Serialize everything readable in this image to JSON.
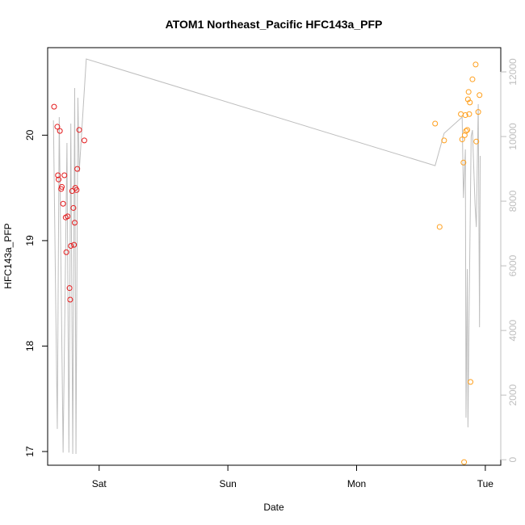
{
  "chart_data": {
    "type": "scatter",
    "title": "ATOM1 Northeast_Pacific HFC143a_PFP",
    "xlabel": "Date",
    "ylabel": "HFC143a_PFP",
    "x_ticks": [
      {
        "label": "Sat",
        "value": 1.0
      },
      {
        "label": "Sun",
        "value": 2.0
      },
      {
        "label": "Mon",
        "value": 3.0
      },
      {
        "label": "Tue",
        "value": 4.0
      }
    ],
    "y_ticks": [
      17,
      18,
      19,
      20
    ],
    "y2_ticks": [
      0,
      2000,
      4000,
      6000,
      8000,
      10000,
      12000
    ],
    "xlim": [
      0.6,
      4.12
    ],
    "ylim": [
      16.87,
      20.83
    ],
    "y2lim": [
      -170,
      12750
    ],
    "colors": {
      "series1": "#e41a1c",
      "series2": "#ff9f1c",
      "line": "#bebebe"
    },
    "series": [
      {
        "points": [
          [
            0.65,
            20.27
          ],
          [
            0.675,
            20.08
          ],
          [
            0.68,
            19.62
          ],
          [
            0.685,
            19.58
          ],
          [
            0.695,
            20.04
          ],
          [
            0.705,
            19.49
          ],
          [
            0.71,
            19.51
          ],
          [
            0.72,
            19.35
          ],
          [
            0.73,
            19.62
          ],
          [
            0.74,
            19.22
          ],
          [
            0.745,
            18.89
          ],
          [
            0.755,
            19.23
          ],
          [
            0.77,
            18.55
          ],
          [
            0.775,
            18.44
          ],
          [
            0.78,
            18.95
          ],
          [
            0.79,
            19.47
          ],
          [
            0.8,
            19.31
          ],
          [
            0.805,
            18.96
          ],
          [
            0.81,
            19.17
          ],
          [
            0.815,
            19.5
          ],
          [
            0.825,
            19.48
          ],
          [
            0.83,
            19.68
          ],
          [
            0.845,
            20.05
          ],
          [
            0.885,
            19.95
          ]
        ]
      },
      {
        "points": [
          [
            3.61,
            20.11
          ],
          [
            3.645,
            19.13
          ],
          [
            3.68,
            19.95
          ],
          [
            3.81,
            20.2
          ],
          [
            3.82,
            19.96
          ],
          [
            3.83,
            19.74
          ],
          [
            3.84,
            20.0
          ],
          [
            3.845,
            20.19
          ],
          [
            3.85,
            20.04
          ],
          [
            3.86,
            20.05
          ],
          [
            3.865,
            20.34
          ],
          [
            3.87,
            20.41
          ],
          [
            3.875,
            20.2
          ],
          [
            3.88,
            20.31
          ],
          [
            3.885,
            17.66
          ],
          [
            3.9,
            20.53
          ],
          [
            3.925,
            20.67
          ],
          [
            3.93,
            19.94
          ],
          [
            3.945,
            20.22
          ],
          [
            3.955,
            20.38
          ],
          [
            3.835,
            16.9
          ]
        ]
      }
    ],
    "line_y2": [
      [
        0.645,
        10500
      ],
      [
        0.675,
        950
      ],
      [
        0.69,
        10600
      ],
      [
        0.72,
        220
      ],
      [
        0.75,
        9800
      ],
      [
        0.765,
        220
      ],
      [
        0.78,
        10400
      ],
      [
        0.795,
        180
      ],
      [
        0.81,
        11500
      ],
      [
        0.82,
        180
      ],
      [
        0.835,
        11200
      ],
      [
        0.845,
        8900
      ],
      [
        0.9,
        12400
      ],
      [
        3.61,
        9100
      ],
      [
        3.68,
        10100
      ],
      [
        3.82,
        10600
      ],
      [
        3.83,
        8100
      ],
      [
        3.845,
        9600
      ],
      [
        3.85,
        1300
      ],
      [
        3.86,
        5900
      ],
      [
        3.865,
        1000
      ],
      [
        3.875,
        4900
      ],
      [
        3.89,
        10000
      ],
      [
        3.9,
        10200
      ],
      [
        3.92,
        7900
      ],
      [
        3.93,
        7200
      ],
      [
        3.945,
        11000
      ],
      [
        3.955,
        4100
      ],
      [
        3.96,
        9400
      ]
    ]
  }
}
